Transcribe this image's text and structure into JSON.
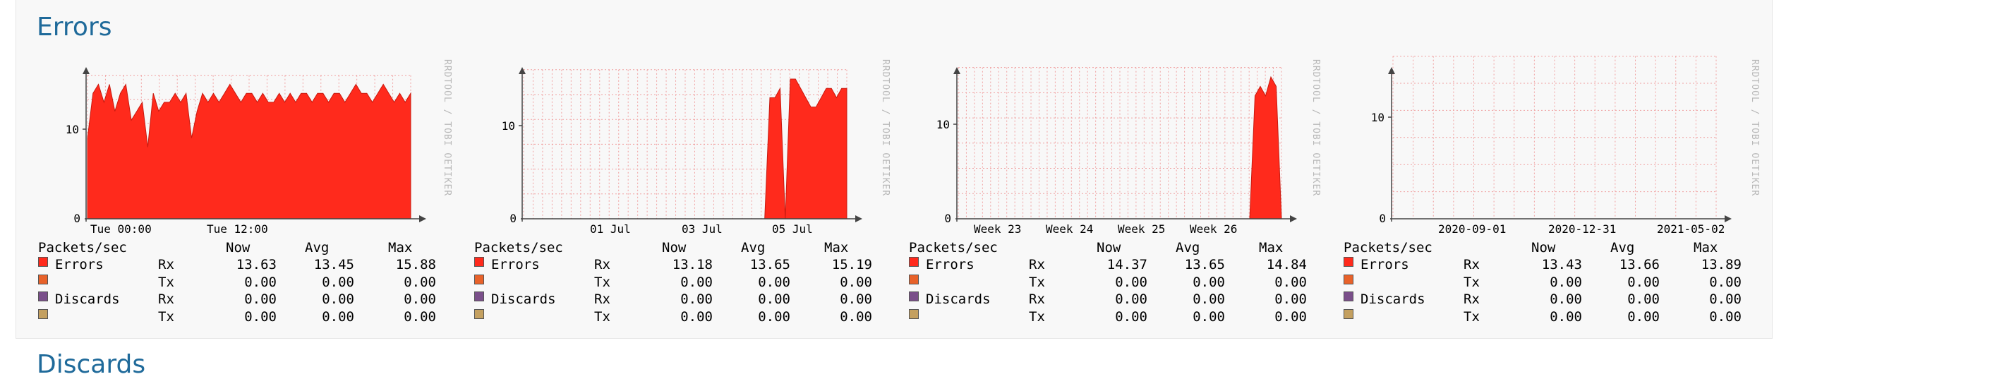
{
  "sections": {
    "errors_title": "Errors",
    "discards_title": "Discards"
  },
  "colors": {
    "errors_rx": "#ff2a1c",
    "errors_tx": "#e8622a",
    "discards_rx": "#7a4f8a",
    "discards_tx": "#c4a060",
    "grid": "#f0a0a0",
    "heading": "#1f6a9a"
  },
  "watermark": "RRDTOOL / TOBI OETIKER",
  "graphs": [
    {
      "id": "day",
      "y_tick": "10",
      "y_zero": "0",
      "x_ticks": [
        "Tue 00:00",
        "Tue 12:00"
      ],
      "legend": {
        "unit": "Packets/sec",
        "headers": [
          "Now",
          "Avg",
          "Max"
        ],
        "rows": [
          {
            "name": "Errors",
            "dir": "Rx",
            "now": "13.63",
            "avg": "13.45",
            "max": "15.88"
          },
          {
            "name": "",
            "dir": "Tx",
            "now": "0.00",
            "avg": "0.00",
            "max": "0.00"
          },
          {
            "name": "Discards",
            "dir": "Rx",
            "now": "0.00",
            "avg": "0.00",
            "max": "0.00"
          },
          {
            "name": "",
            "dir": "Tx",
            "now": "0.00",
            "avg": "0.00",
            "max": "0.00"
          }
        ]
      }
    },
    {
      "id": "week",
      "y_tick": "10",
      "y_zero": "0",
      "x_ticks": [
        "01 Jul",
        "03 Jul",
        "05 Jul"
      ],
      "legend": {
        "unit": "Packets/sec",
        "headers": [
          "Now",
          "Avg",
          "Max"
        ],
        "rows": [
          {
            "name": "Errors",
            "dir": "Rx",
            "now": "13.18",
            "avg": "13.65",
            "max": "15.19"
          },
          {
            "name": "",
            "dir": "Tx",
            "now": "0.00",
            "avg": "0.00",
            "max": "0.00"
          },
          {
            "name": "Discards",
            "dir": "Rx",
            "now": "0.00",
            "avg": "0.00",
            "max": "0.00"
          },
          {
            "name": "",
            "dir": "Tx",
            "now": "0.00",
            "avg": "0.00",
            "max": "0.00"
          }
        ]
      }
    },
    {
      "id": "month",
      "y_tick": "10",
      "y_zero": "0",
      "x_ticks": [
        "Week 23",
        "Week 24",
        "Week 25",
        "Week 26"
      ],
      "legend": {
        "unit": "Packets/sec",
        "headers": [
          "Now",
          "Avg",
          "Max"
        ],
        "rows": [
          {
            "name": "Errors",
            "dir": "Rx",
            "now": "14.37",
            "avg": "13.65",
            "max": "14.84"
          },
          {
            "name": "",
            "dir": "Tx",
            "now": "0.00",
            "avg": "0.00",
            "max": "0.00"
          },
          {
            "name": "Discards",
            "dir": "Rx",
            "now": "0.00",
            "avg": "0.00",
            "max": "0.00"
          },
          {
            "name": "",
            "dir": "Tx",
            "now": "0.00",
            "avg": "0.00",
            "max": "0.00"
          }
        ]
      }
    },
    {
      "id": "year",
      "y_tick": "10",
      "y_zero": "0",
      "x_ticks": [
        "2020-09-01",
        "2020-12-31",
        "2021-05-02"
      ],
      "legend": {
        "unit": "Packets/sec",
        "headers": [
          "Now",
          "Avg",
          "Max"
        ],
        "rows": [
          {
            "name": "Errors",
            "dir": "Rx",
            "now": "13.43",
            "avg": "13.66",
            "max": "13.89"
          },
          {
            "name": "",
            "dir": "Tx",
            "now": "0.00",
            "avg": "0.00",
            "max": "0.00"
          },
          {
            "name": "Discards",
            "dir": "Rx",
            "now": "0.00",
            "avg": "0.00",
            "max": "0.00"
          },
          {
            "name": "",
            "dir": "Tx",
            "now": "0.00",
            "avg": "0.00",
            "max": "0.00"
          }
        ]
      }
    }
  ],
  "chart_data": [
    {
      "type": "area",
      "ylim": [
        0,
        16
      ],
      "x_ticks": [
        "Tue 00:00",
        "Tue 12:00"
      ],
      "y_ticks": [
        0,
        10
      ],
      "grid": true,
      "series": [
        {
          "name": "Errors",
          "values": [
            9,
            14,
            15,
            13,
            15,
            12,
            14,
            15,
            11,
            12,
            13,
            8,
            14,
            12,
            13,
            13,
            14,
            13,
            14,
            9,
            12,
            14,
            13,
            14,
            13,
            14,
            15,
            14,
            13,
            14,
            14,
            13,
            14,
            13,
            13,
            14,
            13,
            14,
            13,
            14,
            14,
            13,
            14,
            14,
            13,
            14,
            14,
            13,
            14,
            15,
            14,
            14,
            13,
            14,
            15,
            14,
            13,
            14,
            13,
            14
          ]
        }
      ]
    },
    {
      "type": "area",
      "ylim": [
        0,
        16
      ],
      "x_ticks": [
        "01 Jul",
        "03 Jul",
        "05 Jul"
      ],
      "y_ticks": [
        0,
        10
      ],
      "grid": true,
      "series": [
        {
          "name": "Errors",
          "values": [
            0,
            0,
            0,
            0,
            0,
            0,
            0,
            0,
            0,
            0,
            0,
            0,
            0,
            0,
            0,
            0,
            0,
            0,
            0,
            0,
            0,
            0,
            0,
            0,
            0,
            0,
            0,
            0,
            0,
            0,
            0,
            0,
            0,
            0,
            0,
            0,
            0,
            0,
            0,
            0,
            0,
            0,
            0,
            0,
            0,
            0,
            0,
            0,
            13,
            13,
            14,
            0,
            15,
            15,
            14,
            13,
            12,
            12,
            13,
            14,
            14,
            13,
            14,
            14
          ]
        }
      ]
    },
    {
      "type": "area",
      "ylim": [
        0,
        16
      ],
      "x_ticks": [
        "Week 23",
        "Week 24",
        "Week 25",
        "Week 26"
      ],
      "y_ticks": [
        0,
        10
      ],
      "grid": true,
      "series": [
        {
          "name": "Errors",
          "values": [
            0,
            0,
            0,
            0,
            0,
            0,
            0,
            0,
            0,
            0,
            0,
            0,
            0,
            0,
            0,
            0,
            0,
            0,
            0,
            0,
            0,
            0,
            0,
            0,
            0,
            0,
            0,
            0,
            0,
            0,
            0,
            0,
            0,
            0,
            0,
            0,
            0,
            0,
            0,
            0,
            0,
            0,
            0,
            0,
            0,
            0,
            0,
            0,
            0,
            0,
            0,
            0,
            0,
            0,
            0,
            0,
            13,
            14,
            13,
            15,
            14,
            0
          ]
        }
      ]
    },
    {
      "type": "area",
      "ylim": [
        0,
        16
      ],
      "x_ticks": [
        "2020-09-01",
        "2020-12-31",
        "2021-05-02"
      ],
      "y_ticks": [
        0,
        10
      ],
      "grid": true,
      "series": [
        {
          "name": "Errors",
          "values": []
        }
      ]
    }
  ]
}
